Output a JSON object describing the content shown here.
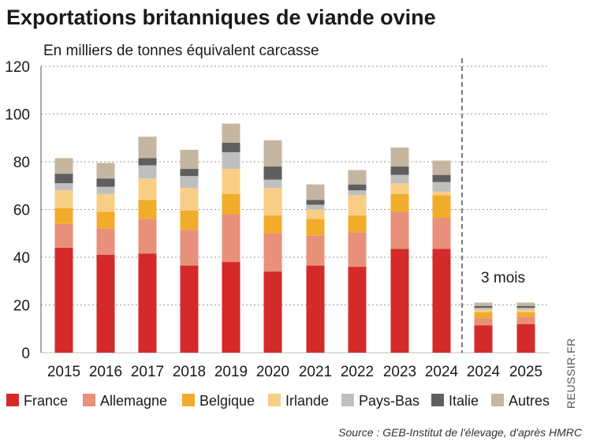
{
  "chart_data": {
    "type": "bar",
    "stacked": true,
    "title": "Exportations britanniques de viande ovine",
    "subtitle": "En milliers de tonnes équivalent carcasse",
    "ylim": [
      0,
      120
    ],
    "yticks": [
      0,
      20,
      40,
      60,
      80,
      100,
      120
    ],
    "grid": true,
    "categories": [
      "2015",
      "2016",
      "2017",
      "2018",
      "2019",
      "2020",
      "2021",
      "2022",
      "2023",
      "2024",
      "2024",
      "2025"
    ],
    "annotation": "3 mois",
    "series": [
      {
        "name": "France",
        "color": "#d42a2a",
        "values": [
          44,
          41,
          41.5,
          36.5,
          38,
          34,
          36.5,
          36,
          43.5,
          43.5,
          11.5,
          12
        ]
      },
      {
        "name": "Allemagne",
        "color": "#e8907a",
        "values": [
          10,
          11,
          14.5,
          15,
          20,
          16,
          12.5,
          14.5,
          15.5,
          13,
          3,
          3
        ]
      },
      {
        "name": "Belgique",
        "color": "#f2ac2c",
        "values": [
          6.5,
          7,
          8,
          8,
          8.5,
          7.5,
          7,
          7,
          7.5,
          9.5,
          2.5,
          2
        ]
      },
      {
        "name": "Irlande",
        "color": "#f8ce86",
        "values": [
          7.5,
          7.5,
          9,
          9.5,
          10.5,
          11.5,
          4,
          8.5,
          4.5,
          1.5,
          1,
          1
        ]
      },
      {
        "name": "Pays-Bas",
        "color": "#bfbfbf",
        "values": [
          3,
          3,
          5.5,
          5,
          7,
          3.5,
          2,
          2,
          3.5,
          4,
          0.8,
          0.8
        ]
      },
      {
        "name": "Italie",
        "color": "#5f5f5f",
        "values": [
          4,
          3.5,
          3,
          3,
          4,
          5.5,
          2,
          2.5,
          3.5,
          3,
          0.8,
          0.8
        ]
      },
      {
        "name": "Autres",
        "color": "#c4b6a0",
        "values": [
          6.5,
          6.5,
          9,
          8,
          8,
          11,
          6.5,
          6,
          8,
          6,
          1.4,
          1.4
        ]
      }
    ]
  },
  "source": "Source : GEB-Institut de l'élevage, d'après HMRC",
  "brand": "REUSSIR.FR"
}
